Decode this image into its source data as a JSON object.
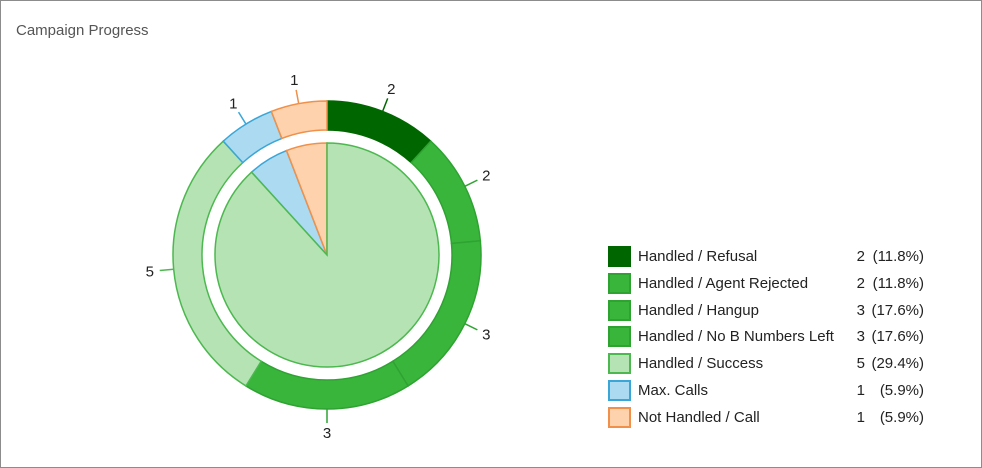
{
  "widget": {
    "title": "Campaign Progress"
  },
  "chart_data": {
    "type": "pie",
    "title": "Campaign Progress",
    "legend_position": "right",
    "outer_ring": {
      "slices": [
        {
          "name": "Handled / Refusal",
          "value": 2,
          "color": "#006600",
          "border": "#006600"
        },
        {
          "name": "Handled / Agent Rejected",
          "value": 2,
          "color": "#39b53c",
          "border": "#2fa332"
        },
        {
          "name": "Handled / Hangup",
          "value": 3,
          "color": "#39b53c",
          "border": "#2fa332"
        },
        {
          "name": "Handled / No B Numbers Left",
          "value": 3,
          "color": "#39b53c",
          "border": "#2fa332"
        },
        {
          "name": "Handled / Success",
          "value": 5,
          "color": "#b5e3b4",
          "border": "#4cb84f"
        },
        {
          "name": "Max. Calls",
          "value": 1,
          "color": "#acdaf0",
          "border": "#3aa6d8"
        },
        {
          "name": "Not Handled / Call",
          "value": 1,
          "color": "#fdd2ad",
          "border": "#f0904a"
        }
      ]
    },
    "inner_pie": {
      "slices": [
        {
          "name": "Handled",
          "value": 15,
          "color": "#b5e3b4",
          "border": "#4cb84f"
        },
        {
          "name": "Max. Calls",
          "value": 1,
          "color": "#acdaf0",
          "border": "#3aa6d8"
        },
        {
          "name": "Not Handled / Call",
          "value": 1,
          "color": "#fdd2ad",
          "border": "#f0904a"
        }
      ]
    },
    "legend": [
      {
        "label": "Handled / Refusal",
        "value": "2",
        "percent": "(11.8%)",
        "color": "#006600",
        "border": "#006600"
      },
      {
        "label": "Handled / Agent Rejected",
        "value": "2",
        "percent": "(11.8%)",
        "color": "#39b53c",
        "border": "#2fa332"
      },
      {
        "label": "Handled / Hangup",
        "value": "3",
        "percent": "(17.6%)",
        "color": "#39b53c",
        "border": "#2fa332"
      },
      {
        "label": "Handled / No B Numbers Left",
        "value": "3",
        "percent": "(17.6%)",
        "color": "#39b53c",
        "border": "#2fa332"
      },
      {
        "label": "Handled / Success",
        "value": "5",
        "percent": "(29.4%)",
        "color": "#b5e3b4",
        "border": "#4cb84f"
      },
      {
        "label": "Max. Calls",
        "value": "1",
        "percent": "(5.9%)",
        "color": "#acdaf0",
        "border": "#3aa6d8"
      },
      {
        "label": "Not Handled / Call",
        "value": "1",
        "percent": "(5.9%)",
        "color": "#fdd2ad",
        "border": "#f0904a"
      }
    ]
  }
}
